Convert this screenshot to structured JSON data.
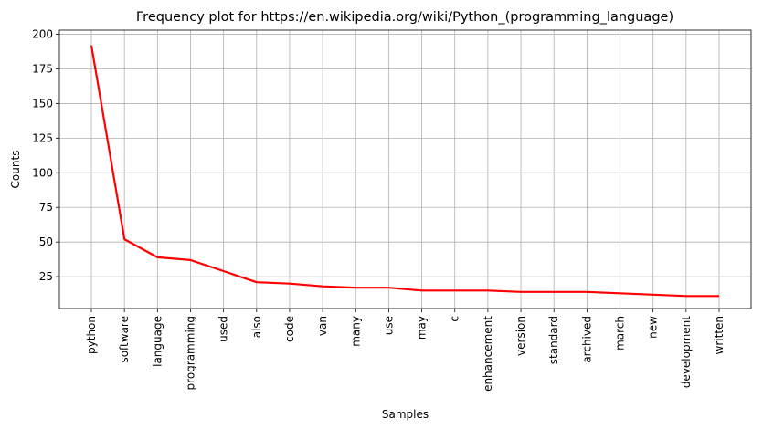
{
  "chart_data": {
    "type": "line",
    "title": "Frequency plot for https://en.wikipedia.org/wiki/Python_(programming_language)",
    "xlabel": "Samples",
    "ylabel": "Counts",
    "categories": [
      "python",
      "software",
      "language",
      "programming",
      "used",
      "also",
      "code",
      "van",
      "many",
      "use",
      "may",
      "c",
      "enhancement",
      "version",
      "standard",
      "archived",
      "march",
      "new",
      "development",
      "written"
    ],
    "values": [
      192,
      52,
      39,
      37,
      29,
      21,
      20,
      18,
      17,
      17,
      15,
      15,
      15,
      14,
      14,
      14,
      13,
      12,
      11,
      11
    ],
    "ylim": [
      2,
      203
    ],
    "yticks": [
      25,
      50,
      75,
      100,
      125,
      150,
      175,
      200
    ],
    "grid": true,
    "line_color": "#ff0000",
    "grid_color": "#b0b0b0"
  }
}
